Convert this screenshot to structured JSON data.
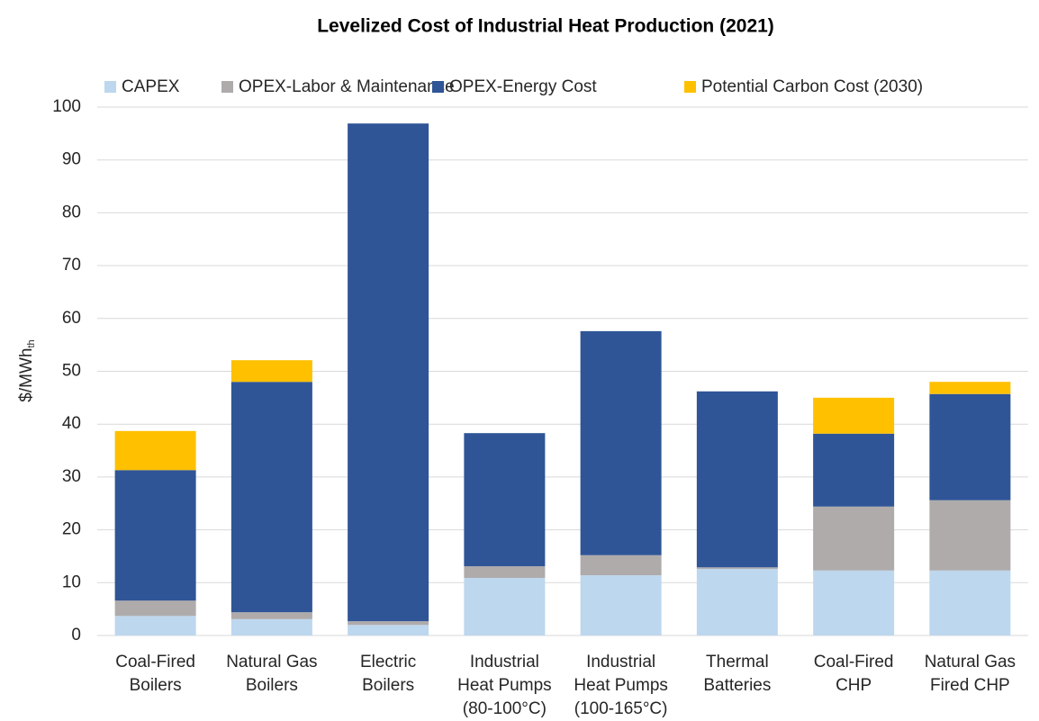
{
  "chart_data": {
    "type": "stacked_bar",
    "title": "Levelized Cost of Industrial Heat Production (2021)",
    "y_label": "$/MWh",
    "y_label_sub": "th",
    "categories": [
      "Coal-Fired\nBoilers",
      "Natural Gas\nBoilers",
      "Electric\nBoilers",
      "Industrial\nHeat Pumps\n(80-100°C)",
      "Industrial\nHeat Pumps\n(100-165°C)",
      "Thermal\nBatteries",
      "Coal-Fired\nCHP",
      "Natural Gas\nFired CHP"
    ],
    "series": [
      {
        "name": "CAPEX",
        "color": "#bdd7ee",
        "values": [
          3.7,
          3.1,
          2.0,
          10.9,
          11.4,
          12.6,
          12.3,
          12.3
        ]
      },
      {
        "name": "OPEX-Labor & Maintenance",
        "color": "#afabab",
        "values": [
          2.9,
          1.3,
          0.7,
          2.2,
          3.8,
          0.3,
          12.1,
          13.3
        ]
      },
      {
        "name": "OPEX-Energy Cost",
        "color": "#2f5597",
        "values": [
          24.7,
          43.6,
          94.2,
          25.2,
          42.4,
          33.3,
          13.8,
          20.1
        ]
      },
      {
        "name": "Potential Carbon Cost (2030)",
        "color": "#ffc000",
        "values": [
          7.4,
          4.1,
          0,
          0,
          0,
          0,
          6.8,
          2.3
        ]
      }
    ],
    "ylim": [
      0,
      100
    ],
    "yticks": [
      0,
      10,
      20,
      30,
      40,
      50,
      60,
      70,
      80,
      90,
      100
    ],
    "grid": true,
    "legend": "top"
  }
}
